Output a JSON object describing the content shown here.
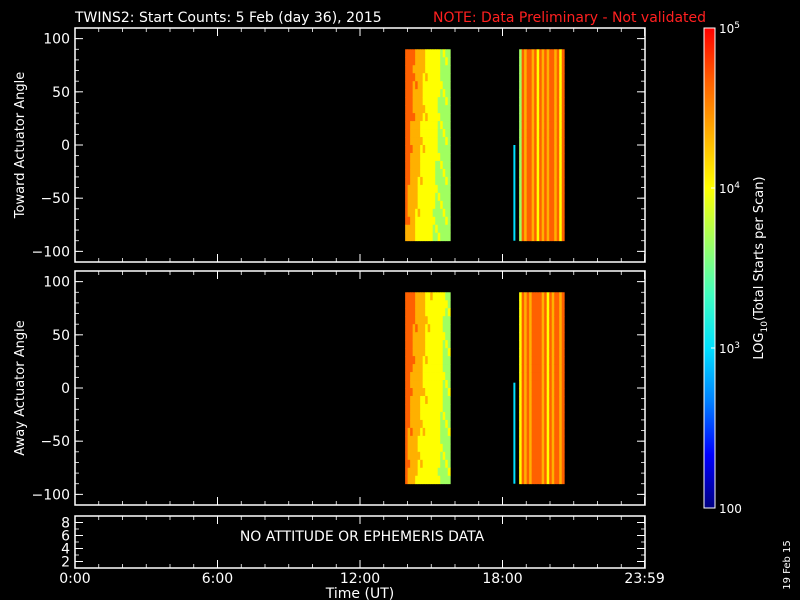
{
  "header": {
    "title": "TWINS2: Start Counts:  5 Feb (day  36), 2015",
    "note": "NOTE: Data Preliminary - Not validated",
    "note_color": "#ff0000"
  },
  "side_date": "19 Feb 15",
  "no_data_message": "NO ATTITUDE OR EPHEMERIS DATA",
  "colorbar": {
    "label": "LOG10(Total Starts per Scan)",
    "scale": "log",
    "range": [
      100,
      100000
    ],
    "ticks": [
      "100",
      "10^3",
      "10^4",
      "10^5"
    ],
    "colormap": [
      "#000080",
      "#0000ff",
      "#0080ff",
      "#00e0ff",
      "#40ffc0",
      "#a0ff60",
      "#ffff00",
      "#ffb000",
      "#ff6000",
      "#ff0000"
    ]
  },
  "chart_data": [
    {
      "type": "heatmap",
      "ylabel": "Toward Actuator Angle",
      "xlim": [
        0,
        24
      ],
      "ylim": [
        -110,
        110
      ],
      "yticks": [
        "100",
        "50",
        "0",
        "−50",
        "−100"
      ],
      "xticks": [
        "0:00",
        "6:00",
        "12:00",
        "18:00",
        "23:59"
      ],
      "blocks": [
        {
          "start_hour": 13.9,
          "end_hour": 15.8,
          "angle_range": [
            -90,
            90
          ],
          "log_counts_range": [
            3.2,
            4.8
          ]
        },
        {
          "start_hour": 18.7,
          "end_hour": 20.6,
          "angle_range": [
            -90,
            90
          ],
          "log_counts_range": [
            3.3,
            4.9
          ]
        }
      ],
      "isolated_traces": [
        {
          "hour": 18.5,
          "angle_range": [
            -90,
            0
          ],
          "log_counts": 2.9
        }
      ]
    },
    {
      "type": "heatmap",
      "ylabel": "Away Actuator Angle",
      "xlim": [
        0,
        24
      ],
      "ylim": [
        -110,
        110
      ],
      "yticks": [
        "100",
        "50",
        "0",
        "−50",
        "−100"
      ],
      "xticks": [
        "0:00",
        "6:00",
        "12:00",
        "18:00",
        "23:59"
      ],
      "blocks": [
        {
          "start_hour": 13.9,
          "end_hour": 15.8,
          "angle_range": [
            -90,
            90
          ],
          "log_counts_range": [
            3.3,
            4.8
          ]
        },
        {
          "start_hour": 18.7,
          "end_hour": 20.6,
          "angle_range": [
            -90,
            90
          ],
          "log_counts_range": [
            3.4,
            4.9
          ]
        }
      ],
      "isolated_traces": [
        {
          "hour": 18.5,
          "angle_range": [
            -90,
            5
          ],
          "log_counts": 2.9
        }
      ]
    },
    {
      "type": "line",
      "ylim": [
        1,
        9
      ],
      "yticks": [
        "8",
        "6",
        "4",
        "2"
      ],
      "xticks": [
        "0:00",
        "6:00",
        "12:00",
        "18:00",
        "23:59"
      ],
      "xlabel": "Time (UT)"
    }
  ]
}
